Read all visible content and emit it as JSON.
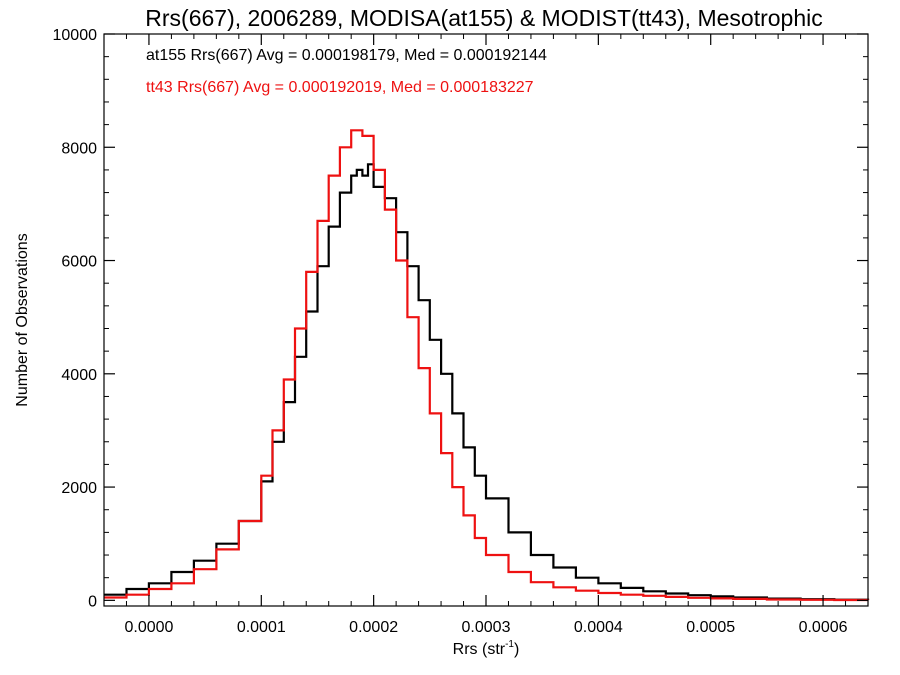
{
  "chart_data": {
    "type": "line",
    "title": "Rrs(667), 2006289, MODISA(at155) & MODIST(tt43), Mesotrophic",
    "xlabel_main": "Rrs (str",
    "xlabel_sup": "-1",
    "xlabel_close": ")",
    "ylabel": "Number of Observations",
    "xlim": [
      -4e-05,
      0.00064
    ],
    "ylim": [
      -100,
      10000
    ],
    "x_ticks": [
      0.0,
      0.0001,
      0.0002,
      0.0003,
      0.0004,
      0.0005,
      0.0006
    ],
    "x_tick_labels": [
      "0.0000",
      "0.0001",
      "0.0002",
      "0.0003",
      "0.0004",
      "0.0005",
      "0.0006"
    ],
    "y_ticks": [
      0,
      2000,
      4000,
      6000,
      8000,
      10000
    ],
    "y_tick_labels": [
      "0",
      "2000",
      "4000",
      "6000",
      "8000",
      "10000"
    ],
    "grid": false,
    "legend_position": "top-left",
    "series": [
      {
        "name": "at155",
        "color": "#000000",
        "legend": "at155 Rrs(667) Avg = 0.000198179, Med = 0.000192144",
        "points": [
          [
            -4e-05,
            100
          ],
          [
            -2e-05,
            200
          ],
          [
            0.0,
            300
          ],
          [
            2e-05,
            500
          ],
          [
            4e-05,
            700
          ],
          [
            6e-05,
            1000
          ],
          [
            8e-05,
            1400
          ],
          [
            0.0001,
            2100
          ],
          [
            0.00011,
            2800
          ],
          [
            0.00012,
            3500
          ],
          [
            0.00013,
            4300
          ],
          [
            0.00014,
            5100
          ],
          [
            0.00015,
            5900
          ],
          [
            0.00016,
            6600
          ],
          [
            0.00017,
            7200
          ],
          [
            0.00018,
            7500
          ],
          [
            0.000185,
            7600
          ],
          [
            0.00019,
            7500
          ],
          [
            0.000195,
            7700
          ],
          [
            0.0002,
            7300
          ],
          [
            0.00021,
            7100
          ],
          [
            0.00022,
            6500
          ],
          [
            0.00023,
            5900
          ],
          [
            0.00024,
            5300
          ],
          [
            0.00025,
            4600
          ],
          [
            0.00026,
            4000
          ],
          [
            0.00027,
            3300
          ],
          [
            0.00028,
            2700
          ],
          [
            0.00029,
            2200
          ],
          [
            0.0003,
            1800
          ],
          [
            0.00032,
            1200
          ],
          [
            0.00034,
            800
          ],
          [
            0.00036,
            580
          ],
          [
            0.00038,
            400
          ],
          [
            0.0004,
            300
          ],
          [
            0.00042,
            220
          ],
          [
            0.00044,
            160
          ],
          [
            0.00046,
            120
          ],
          [
            0.00048,
            90
          ],
          [
            0.0005,
            70
          ],
          [
            0.00052,
            50
          ],
          [
            0.00055,
            30
          ],
          [
            0.00058,
            20
          ],
          [
            0.00061,
            12
          ],
          [
            0.00064,
            8
          ]
        ]
      },
      {
        "name": "tt43",
        "color": "#ee1111",
        "legend": "tt43 Rrs(667) Avg = 0.000192019, Med = 0.000183227",
        "points": [
          [
            -4e-05,
            50
          ],
          [
            -2e-05,
            100
          ],
          [
            0.0,
            200
          ],
          [
            2e-05,
            300
          ],
          [
            4e-05,
            550
          ],
          [
            6e-05,
            900
          ],
          [
            8e-05,
            1400
          ],
          [
            0.0001,
            2200
          ],
          [
            0.00011,
            3000
          ],
          [
            0.00012,
            3900
          ],
          [
            0.00013,
            4800
          ],
          [
            0.00014,
            5800
          ],
          [
            0.00015,
            6700
          ],
          [
            0.00016,
            7500
          ],
          [
            0.00017,
            8000
          ],
          [
            0.00018,
            8300
          ],
          [
            0.00019,
            8200
          ],
          [
            0.0002,
            7600
          ],
          [
            0.00021,
            6900
          ],
          [
            0.00022,
            6000
          ],
          [
            0.00023,
            5000
          ],
          [
            0.00024,
            4100
          ],
          [
            0.00025,
            3300
          ],
          [
            0.00026,
            2600
          ],
          [
            0.00027,
            2000
          ],
          [
            0.00028,
            1500
          ],
          [
            0.00029,
            1100
          ],
          [
            0.0003,
            800
          ],
          [
            0.00032,
            500
          ],
          [
            0.00034,
            320
          ],
          [
            0.00036,
            230
          ],
          [
            0.00038,
            170
          ],
          [
            0.0004,
            130
          ],
          [
            0.00042,
            100
          ],
          [
            0.00044,
            80
          ],
          [
            0.00046,
            60
          ],
          [
            0.00048,
            45
          ],
          [
            0.0005,
            35
          ],
          [
            0.00052,
            25
          ],
          [
            0.00055,
            15
          ],
          [
            0.00058,
            10
          ],
          [
            0.00061,
            6
          ],
          [
            0.00064,
            4
          ]
        ]
      }
    ]
  }
}
